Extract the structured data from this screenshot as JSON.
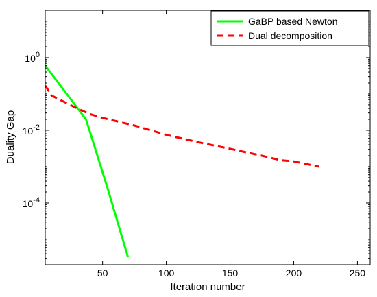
{
  "chart_data": {
    "type": "line",
    "title": "",
    "xlabel": "Iteration number",
    "ylabel": "Duality Gap",
    "xlim": [
      5,
      260
    ],
    "ylim": [
      2e-06,
      20
    ],
    "yscale": "log",
    "grid": false,
    "legend_position": "top-right",
    "x_ticks": [
      50,
      100,
      150,
      200,
      250
    ],
    "x_tick_labels": [
      "50",
      "100",
      "150",
      "200",
      "250"
    ],
    "y_ticks": [
      0.0001,
      0.01,
      1
    ],
    "y_tick_labels": [
      {
        "base": "10",
        "exp": "-4"
      },
      {
        "base": "10",
        "exp": "-2"
      },
      {
        "base": "10",
        "exp": "0"
      }
    ],
    "series": [
      {
        "name": "GaBP based Newton",
        "color": "#00ff00",
        "dash": "solid",
        "x": [
          5,
          37,
          54,
          70
        ],
        "y": [
          0.6,
          0.02,
          0.00025,
          3.2e-06
        ]
      },
      {
        "name": "Dual decomposition",
        "color": "#ff0000",
        "dash": "dashed",
        "x": [
          5,
          10,
          20,
          30,
          40,
          50,
          75,
          100,
          125,
          150,
          175,
          190,
          200,
          220
        ],
        "y": [
          0.17,
          0.09,
          0.06,
          0.04,
          0.028,
          0.022,
          0.0135,
          0.0075,
          0.0047,
          0.0031,
          0.002,
          0.0015,
          0.0014,
          0.001
        ]
      }
    ]
  }
}
